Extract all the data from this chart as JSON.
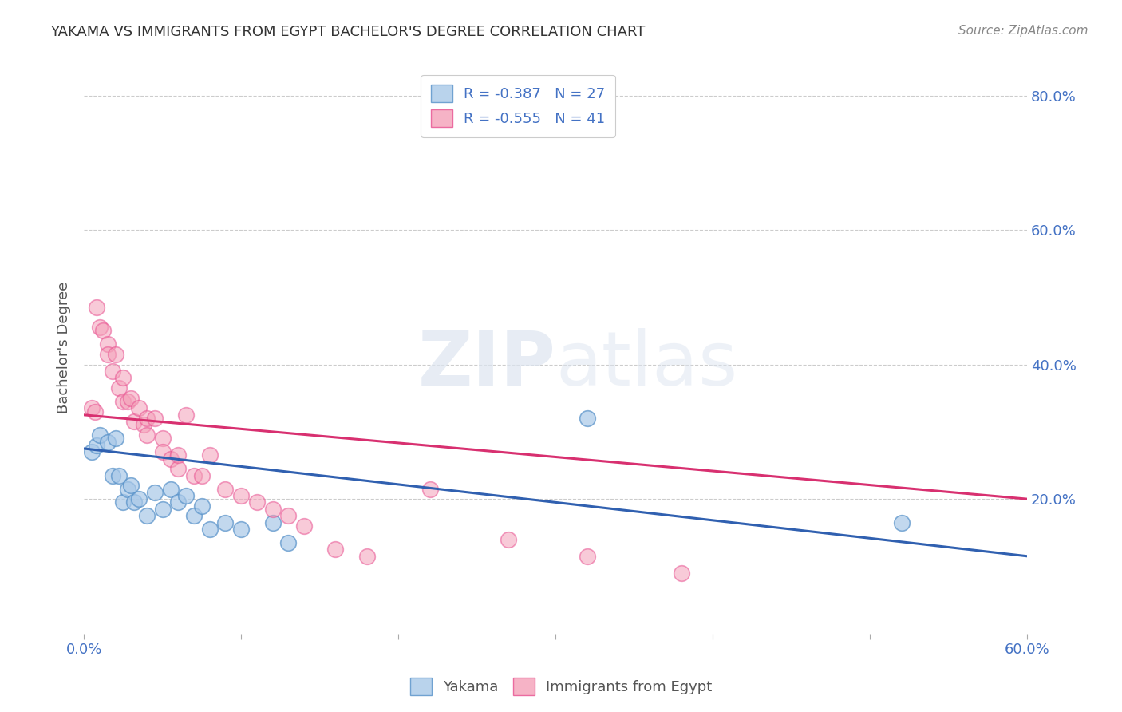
{
  "title": "YAKAMA VS IMMIGRANTS FROM EGYPT BACHELOR'S DEGREE CORRELATION CHART",
  "source": "Source: ZipAtlas.com",
  "ylabel": "Bachelor's Degree",
  "legend_r_blue": "R = -0.387",
  "legend_n_blue": "N = 27",
  "legend_r_pink": "R = -0.555",
  "legend_n_pink": "N = 41",
  "xlim": [
    0.0,
    0.6
  ],
  "ylim": [
    0.0,
    0.85
  ],
  "xticks": [
    0.0,
    0.1,
    0.2,
    0.3,
    0.4,
    0.5,
    0.6
  ],
  "yticks": [
    0.2,
    0.4,
    0.6,
    0.8
  ],
  "right_ytick_labels": [
    "20.0%",
    "40.0%",
    "60.0%",
    "80.0%"
  ],
  "xtick_labels": [
    "0.0%",
    "",
    "",
    "",
    "",
    "",
    "60.0%"
  ],
  "blue_scatter_x": [
    0.005,
    0.008,
    0.01,
    0.015,
    0.018,
    0.02,
    0.022,
    0.025,
    0.028,
    0.03,
    0.032,
    0.035,
    0.04,
    0.045,
    0.05,
    0.055,
    0.06,
    0.065,
    0.07,
    0.075,
    0.08,
    0.09,
    0.1,
    0.12,
    0.13,
    0.32,
    0.52
  ],
  "blue_scatter_y": [
    0.27,
    0.28,
    0.295,
    0.285,
    0.235,
    0.29,
    0.235,
    0.195,
    0.215,
    0.22,
    0.195,
    0.2,
    0.175,
    0.21,
    0.185,
    0.215,
    0.195,
    0.205,
    0.175,
    0.19,
    0.155,
    0.165,
    0.155,
    0.165,
    0.135,
    0.32,
    0.165
  ],
  "pink_scatter_x": [
    0.005,
    0.007,
    0.008,
    0.01,
    0.012,
    0.015,
    0.015,
    0.018,
    0.02,
    0.022,
    0.025,
    0.025,
    0.028,
    0.03,
    0.032,
    0.035,
    0.038,
    0.04,
    0.04,
    0.045,
    0.05,
    0.05,
    0.055,
    0.06,
    0.06,
    0.065,
    0.07,
    0.075,
    0.08,
    0.09,
    0.1,
    0.11,
    0.12,
    0.13,
    0.14,
    0.16,
    0.18,
    0.22,
    0.27,
    0.32,
    0.38
  ],
  "pink_scatter_y": [
    0.335,
    0.33,
    0.485,
    0.455,
    0.45,
    0.43,
    0.415,
    0.39,
    0.415,
    0.365,
    0.38,
    0.345,
    0.345,
    0.35,
    0.315,
    0.335,
    0.31,
    0.32,
    0.295,
    0.32,
    0.29,
    0.27,
    0.26,
    0.245,
    0.265,
    0.325,
    0.235,
    0.235,
    0.265,
    0.215,
    0.205,
    0.195,
    0.185,
    0.175,
    0.16,
    0.125,
    0.115,
    0.215,
    0.14,
    0.115,
    0.09
  ],
  "blue_line_x": [
    0.0,
    0.6
  ],
  "blue_line_y": [
    0.275,
    0.115
  ],
  "pink_line_x": [
    0.0,
    0.6
  ],
  "pink_line_y": [
    0.325,
    0.2
  ],
  "blue_color": "#a8c8e8",
  "pink_color": "#f4a0b8",
  "blue_edge_color": "#5590c8",
  "pink_edge_color": "#e85090",
  "blue_line_color": "#3060b0",
  "pink_line_color": "#d83070",
  "bg_color": "#ffffff",
  "grid_color": "#cccccc",
  "title_color": "#333333",
  "axis_color": "#4472c4",
  "legend_text_color": "#4472c4"
}
